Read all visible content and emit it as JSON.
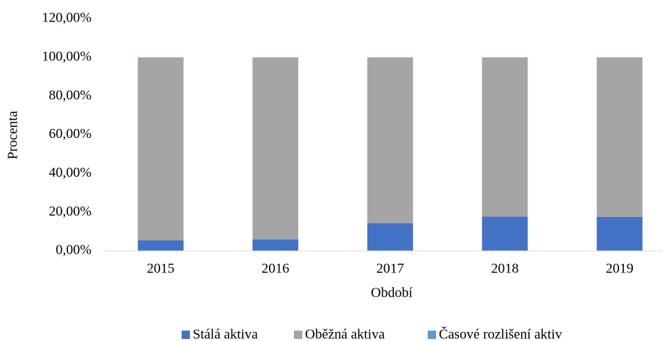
{
  "chart_data": {
    "type": "stacked_bar",
    "x_label": "Období",
    "y_label": "Procenta",
    "categories": [
      "2015",
      "2016",
      "2017",
      "2018",
      "2019"
    ],
    "series": [
      {
        "name": "Stálá aktiva",
        "color": "#4472c4",
        "values": [
          5.5,
          6,
          14.3,
          17.8,
          17.6
        ]
      },
      {
        "name": "Oběžná aktiva",
        "color": "#a5a5a5",
        "values": [
          94.2,
          93.7,
          85.4,
          81.9,
          82.1
        ]
      },
      {
        "name": "Časové rozlišení aktiv",
        "color": "#5b9bd5",
        "values": [
          0.3,
          0.3,
          0.3,
          0.3,
          0.3
        ]
      }
    ],
    "ylim": [
      0,
      120
    ],
    "yticks": [
      {
        "value": 0,
        "label": "0,00%"
      },
      {
        "value": 20,
        "label": "20,00%"
      },
      {
        "value": 40,
        "label": "40,00%"
      },
      {
        "value": 60,
        "label": "60,00%"
      },
      {
        "value": 80,
        "label": "80,00%"
      },
      {
        "value": 100,
        "label": "100,00%"
      },
      {
        "value": 120,
        "label": "120,00%"
      }
    ],
    "grid": false,
    "legend": "bottom"
  }
}
